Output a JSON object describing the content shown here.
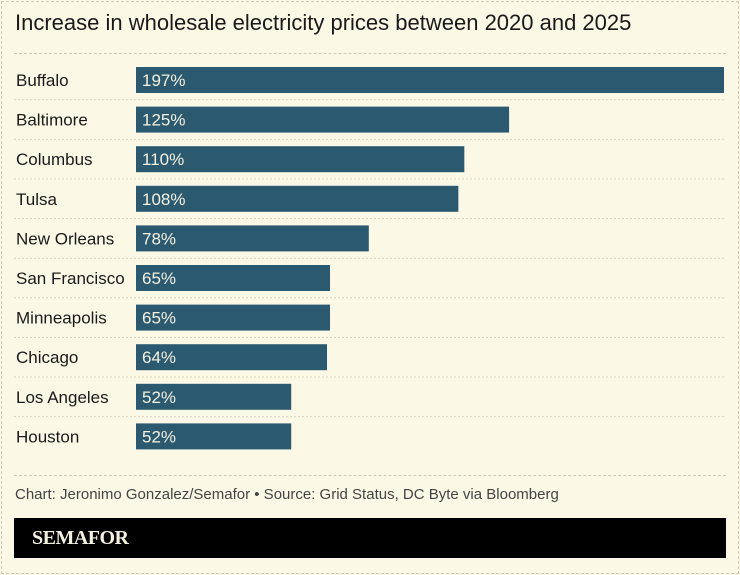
{
  "chart_data": {
    "type": "bar",
    "orientation": "horizontal",
    "title": "Increase in wholesale electricity prices between 2020 and 2025",
    "categories": [
      "Buffalo",
      "Baltimore",
      "Columbus",
      "Tulsa",
      "New Orleans",
      "San Francisco",
      "Minneapolis",
      "Chicago",
      "Los Angeles",
      "Houston"
    ],
    "values": [
      197,
      125,
      110,
      108,
      78,
      65,
      65,
      64,
      52,
      52
    ],
    "value_labels": [
      "197%",
      "125%",
      "110%",
      "108%",
      "78%",
      "65%",
      "65%",
      "64%",
      "52%",
      "52%"
    ],
    "unit": "%",
    "xlim": [
      0,
      197
    ],
    "grid": false,
    "bar_color": "#2b5a70",
    "background_color": "#fcf8e6"
  },
  "credit": "Chart: Jeronimo Gonzalez/Semafor • Source: Grid Status, DC Byte via Bloomberg",
  "footer": {
    "logo": "SEMAFOR"
  }
}
